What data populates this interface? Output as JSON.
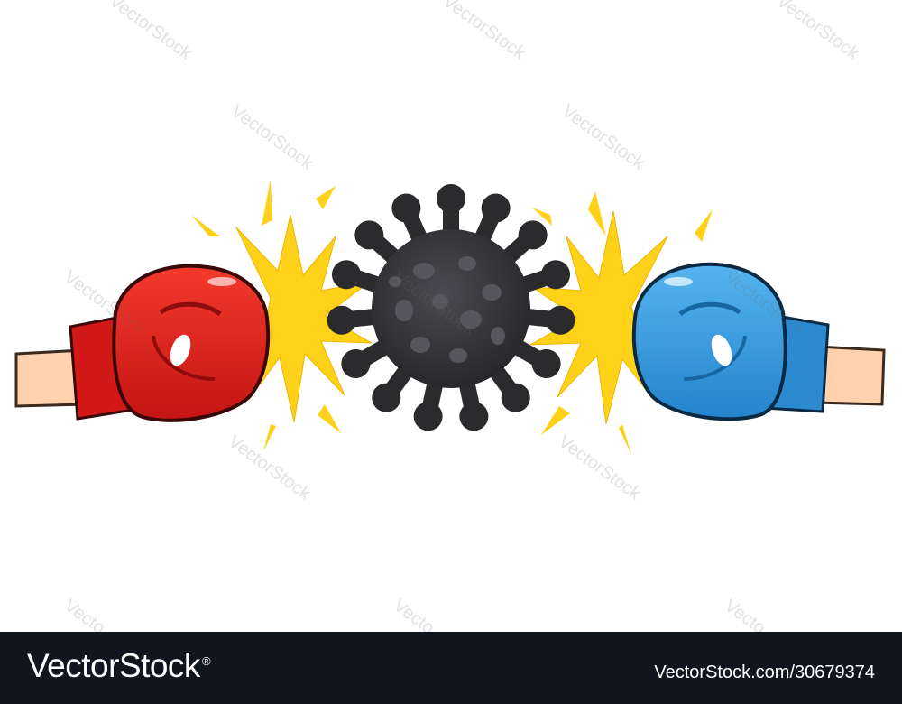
{
  "watermark": {
    "text": "VectorStock",
    "partial_text": "Vecto"
  },
  "footer": {
    "brand": "VectorStock",
    "brand_mark": "®",
    "stock_url": "VectorStock.com/30679374"
  },
  "colors": {
    "red_glove": "#e31e1e",
    "blue_glove": "#3a9ee0",
    "virus": "#2b2b2e",
    "spark": "#ffd21a",
    "skin": "#ffd2ad",
    "footer_bg": "#0f1620"
  },
  "icons": [
    "red-boxing-glove-icon",
    "blue-boxing-glove-icon",
    "coronavirus-icon",
    "impact-spark-icon"
  ]
}
